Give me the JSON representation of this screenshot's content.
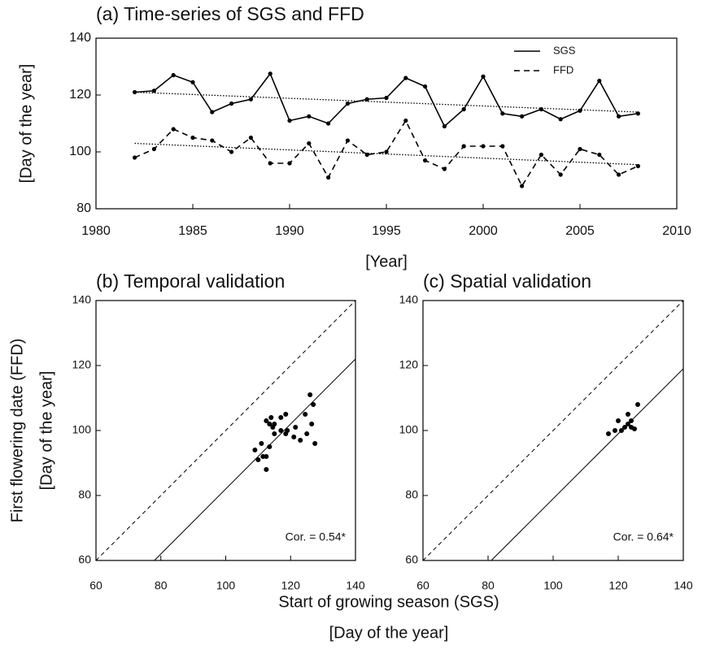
{
  "chart_data": [
    {
      "type": "line",
      "title": "(a) Time-series of SGS and FFD",
      "xlabel": "[Year]",
      "ylabel": "[Day of the year]",
      "xlim": [
        1980,
        2010
      ],
      "ylim": [
        80,
        140
      ],
      "xticks": [
        1980,
        1985,
        1990,
        1995,
        2000,
        2005,
        2010
      ],
      "yticks": [
        80,
        100,
        120,
        140
      ],
      "legend": "upper right",
      "x": [
        1982,
        1983,
        1984,
        1985,
        1986,
        1987,
        1988,
        1989,
        1990,
        1991,
        1992,
        1993,
        1994,
        1995,
        1996,
        1997,
        1998,
        1999,
        2000,
        2001,
        2002,
        2003,
        2004,
        2005,
        2006,
        2007,
        2008
      ],
      "series": [
        {
          "name": "SGS",
          "color": "#000000",
          "dash": false,
          "values": [
            121,
            121.5,
            127,
            124.5,
            114,
            117,
            118.5,
            127.5,
            111,
            112.5,
            110,
            117,
            118.5,
            119,
            126,
            123,
            109,
            115,
            126.5,
            113.5,
            112.5,
            115,
            111.5,
            114.5,
            125,
            112.5,
            113.5
          ]
        },
        {
          "name": "FFD",
          "color": "#000000",
          "dash": true,
          "values": [
            98,
            101,
            108,
            105,
            104,
            100,
            105,
            96,
            96,
            103,
            91,
            104,
            99,
            100,
            111,
            97,
            94,
            102,
            102,
            102,
            88,
            99,
            92,
            101,
            99,
            92,
            95
          ]
        }
      ],
      "trends": [
        {
          "x": [
            1982,
            2008
          ],
          "values": [
            121,
            114
          ]
        },
        {
          "x": [
            1982,
            2008
          ],
          "values": [
            103,
            95.5
          ]
        }
      ]
    },
    {
      "type": "scatter",
      "title": "(b) Temporal validation",
      "ylabel": [
        "First flowering date (FFD)",
        "[Day of the year]"
      ],
      "xlim": [
        60,
        140
      ],
      "ylim": [
        60,
        140
      ],
      "xticks": [
        60,
        80,
        100,
        120,
        140
      ],
      "yticks": [
        60,
        80,
        100,
        120,
        140
      ],
      "x": [
        121,
        121.5,
        127,
        124.5,
        114,
        117,
        118.5,
        127.5,
        111,
        112.5,
        110,
        117,
        118.5,
        119,
        126,
        123,
        109,
        115,
        126.5,
        113.5,
        112.5,
        115,
        111.5,
        114.5,
        125,
        112.5,
        113.5
      ],
      "values": [
        98,
        101,
        108,
        105,
        104,
        100,
        105,
        96,
        96,
        103,
        91,
        104,
        99,
        100,
        111,
        97,
        94,
        102,
        102,
        102,
        88,
        99,
        92,
        101,
        99,
        92,
        95
      ],
      "lines": [
        {
          "dash": true,
          "x": [
            60,
            140
          ],
          "values": [
            60,
            140
          ]
        },
        {
          "dash": false,
          "x": [
            78,
            140
          ],
          "values": [
            60,
            122
          ]
        }
      ],
      "annotation": "Cor. = 0.54*"
    },
    {
      "type": "scatter",
      "title": "(c) Spatial validation",
      "xlim": [
        60,
        140
      ],
      "ylim": [
        60,
        140
      ],
      "xticks": [
        60,
        80,
        100,
        120,
        140
      ],
      "yticks": [
        60,
        80,
        100,
        120,
        140
      ],
      "x": [
        117,
        119,
        120,
        121,
        122,
        123,
        123,
        124,
        124,
        125,
        126
      ],
      "values": [
        99,
        100,
        103,
        100,
        101,
        102,
        105,
        101,
        103,
        100.5,
        108
      ],
      "lines": [
        {
          "dash": true,
          "x": [
            60,
            140
          ],
          "values": [
            60,
            140
          ]
        },
        {
          "dash": false,
          "x": [
            81,
            140
          ],
          "values": [
            60,
            119
          ]
        }
      ],
      "annotation": "Cor. = 0.64*"
    }
  ],
  "shared_xlabel": [
    "Start of growing season (SGS)",
    "[Day of the year]"
  ]
}
